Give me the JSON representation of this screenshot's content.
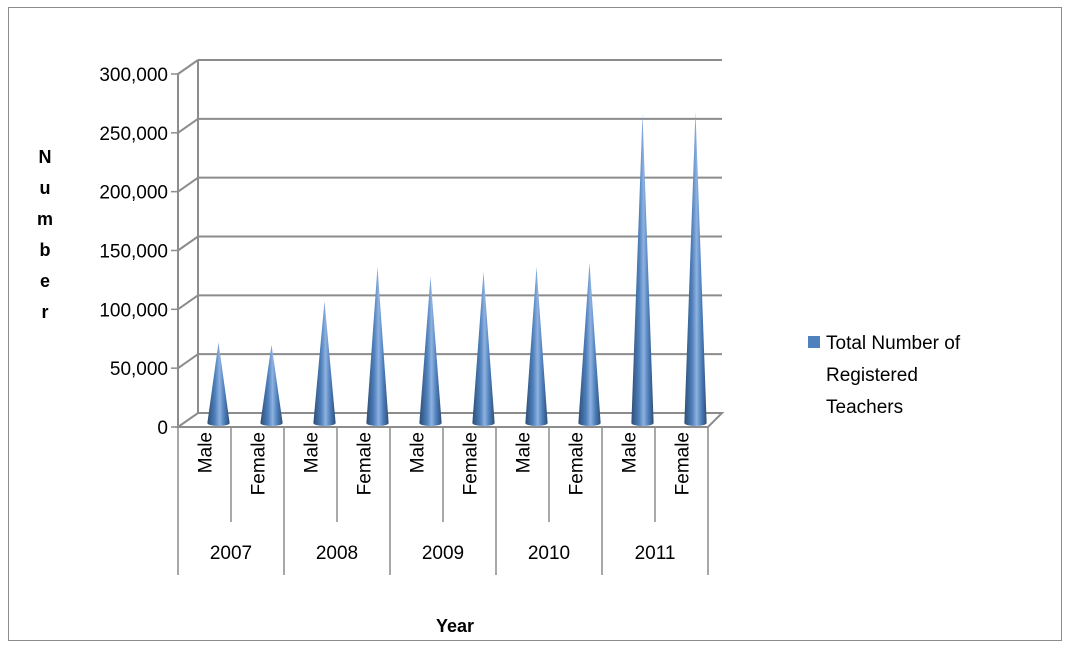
{
  "chart_data": {
    "type": "bar",
    "style": "3d-cone",
    "categories": [
      {
        "year": "2007",
        "sex": "Male"
      },
      {
        "year": "2007",
        "sex": "Female"
      },
      {
        "year": "2008",
        "sex": "Male"
      },
      {
        "year": "2008",
        "sex": "Female"
      },
      {
        "year": "2009",
        "sex": "Male"
      },
      {
        "year": "2009",
        "sex": "Female"
      },
      {
        "year": "2010",
        "sex": "Male"
      },
      {
        "year": "2010",
        "sex": "Female"
      },
      {
        "year": "2011",
        "sex": "Male"
      },
      {
        "year": "2011",
        "sex": "Female"
      }
    ],
    "groups": [
      "2007",
      "2008",
      "2009",
      "2010",
      "2011"
    ],
    "series": [
      {
        "name": "Total Number of Registered Teachers",
        "values": [
          66000,
          64000,
          101000,
          130000,
          122000,
          126000,
          130000,
          134000,
          260000,
          262000
        ]
      }
    ],
    "xlabel": "Year",
    "ylabel": "Number",
    "ylabel_letters": [
      "N",
      "u",
      "m",
      "b",
      "e",
      "r"
    ],
    "yticks": [
      "0",
      "50,000",
      "100,000",
      "150,000",
      "200,000",
      "250,000",
      "300,000"
    ],
    "ylim": [
      0,
      300000
    ],
    "grid": true,
    "legend_position": "right",
    "legend_lines": [
      "Total Number of",
      "Registered",
      "Teachers"
    ],
    "colors": {
      "cone": "#4f81bd",
      "cone_dark": "#2c4d75",
      "cone_light": "#8fb2e0",
      "grid": "#8c8c8c"
    }
  }
}
